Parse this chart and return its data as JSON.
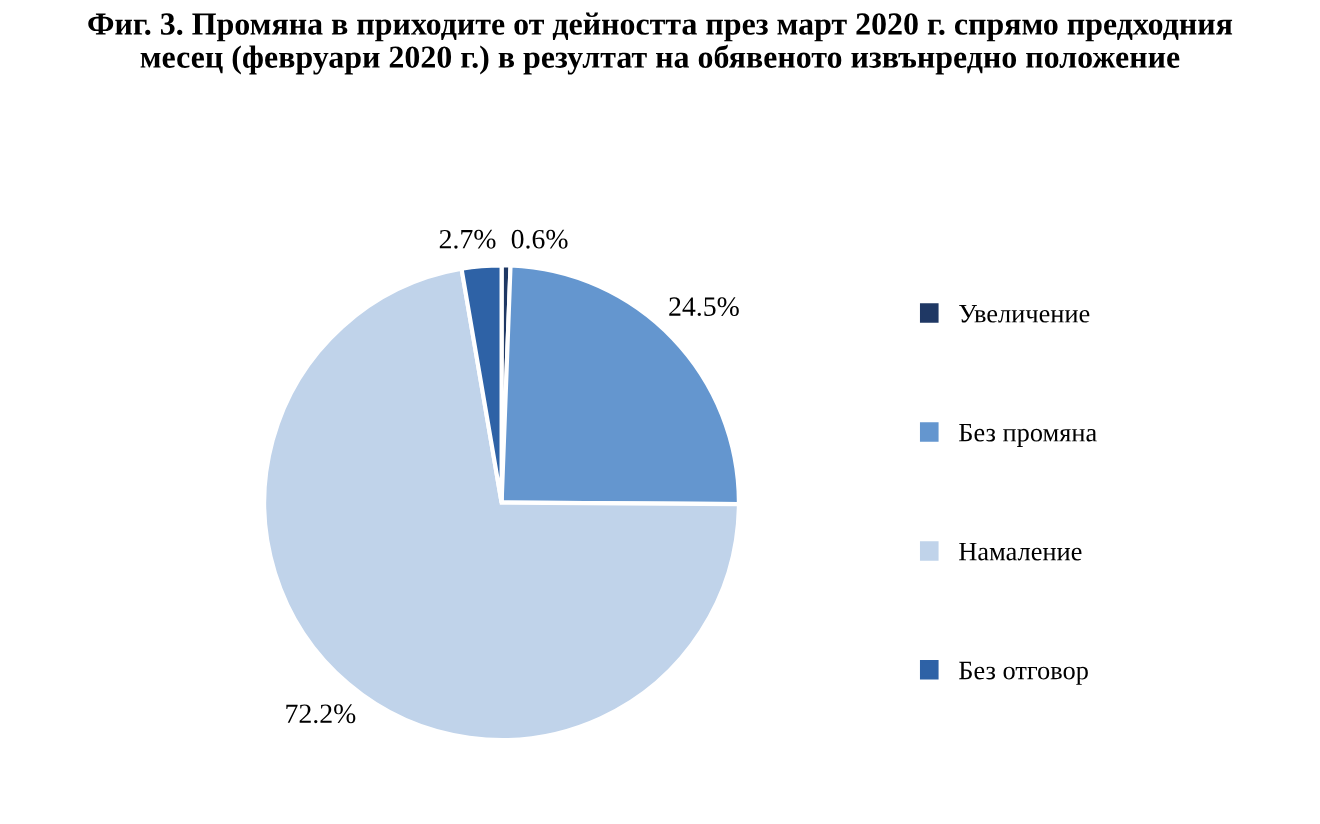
{
  "chart_data": {
    "type": "pie",
    "title": "Фиг. 3. Промяна в приходите от дейността през март 2020 г. спрямо предходния\nмесец (февруари 2020 г.) в резултат на обявеното извънредно положение",
    "categories": [
      "Увеличение",
      "Без промяна",
      "Намаление",
      "Без отговор"
    ],
    "values": [
      0.6,
      24.5,
      72.2,
      2.7
    ],
    "colors": [
      "#1f3864",
      "#6496cf",
      "#c0d3ea",
      "#2e62a6"
    ],
    "value_labels": [
      "0.6%",
      "24.5%",
      "72.2%",
      "2.7%"
    ],
    "legend": "right"
  }
}
